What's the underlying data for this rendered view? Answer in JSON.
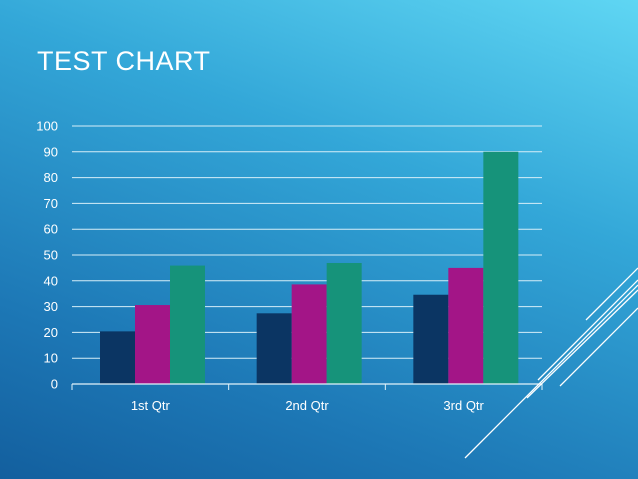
{
  "slide": {
    "title": "TEST CHART"
  },
  "chart_data": {
    "type": "bar",
    "categories": [
      "1st Qtr",
      "2nd Qtr",
      "3rd Qtr"
    ],
    "series": [
      {
        "values": [
          20.4,
          27.4,
          34.6
        ]
      },
      {
        "values": [
          30.6,
          38.6,
          45
        ]
      },
      {
        "values": [
          45.9,
          46.9,
          90
        ]
      }
    ],
    "series_colors": [
      "#0b3563",
      "#a31587",
      "#16937a"
    ],
    "ylim": [
      0,
      100
    ],
    "yticks": [
      0,
      10,
      20,
      30,
      40,
      50,
      60,
      70,
      80,
      90,
      100
    ],
    "grid": true,
    "legend": "none"
  }
}
